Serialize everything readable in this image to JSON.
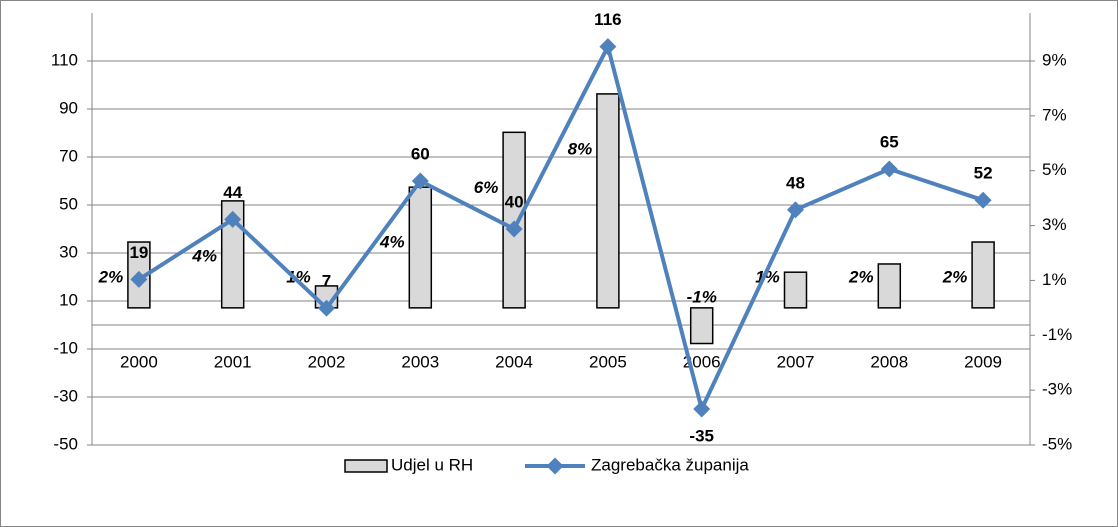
{
  "chart_data": {
    "type": "bar-line",
    "categories": [
      "2000",
      "2001",
      "2002",
      "2003",
      "2004",
      "2005",
      "2006",
      "2007",
      "2008",
      "2009"
    ],
    "series": [
      {
        "name": "Udjel u RH",
        "type": "bar",
        "axis": "y2",
        "color": "#d9d9d9",
        "values": [
          2.4,
          3.9,
          0.8,
          4.4,
          6.4,
          7.8,
          -1.3,
          1.3,
          1.6,
          2.4
        ],
        "value_labels": [
          "2%",
          "4%",
          "1%",
          "4%",
          "6%",
          "8%",
          "-1%",
          "1%",
          "2%",
          "2%"
        ]
      },
      {
        "name": "Zagrebačka županija",
        "type": "line",
        "axis": "y",
        "color": "#4f81bd",
        "values": [
          19,
          44,
          7,
          60,
          40,
          116,
          -35,
          48,
          65,
          52
        ]
      }
    ],
    "ylim": [
      -50,
      130
    ],
    "yticks": [
      -50,
      -30,
      -10,
      10,
      30,
      50,
      70,
      90,
      110
    ],
    "y2lim": [
      -5,
      10.75
    ],
    "y2ticks": [
      {
        "value": -5,
        "label": "-5%"
      },
      {
        "value": -3,
        "label": "-3%"
      },
      {
        "value": -1,
        "label": "-1%"
      },
      {
        "value": 1,
        "label": "1%"
      },
      {
        "value": 3,
        "label": "3%"
      },
      {
        "value": 5,
        "label": "5%"
      },
      {
        "value": 7,
        "label": "7%"
      },
      {
        "value": 9,
        "label": "9%"
      }
    ],
    "grid": true,
    "legend": "bottom"
  }
}
